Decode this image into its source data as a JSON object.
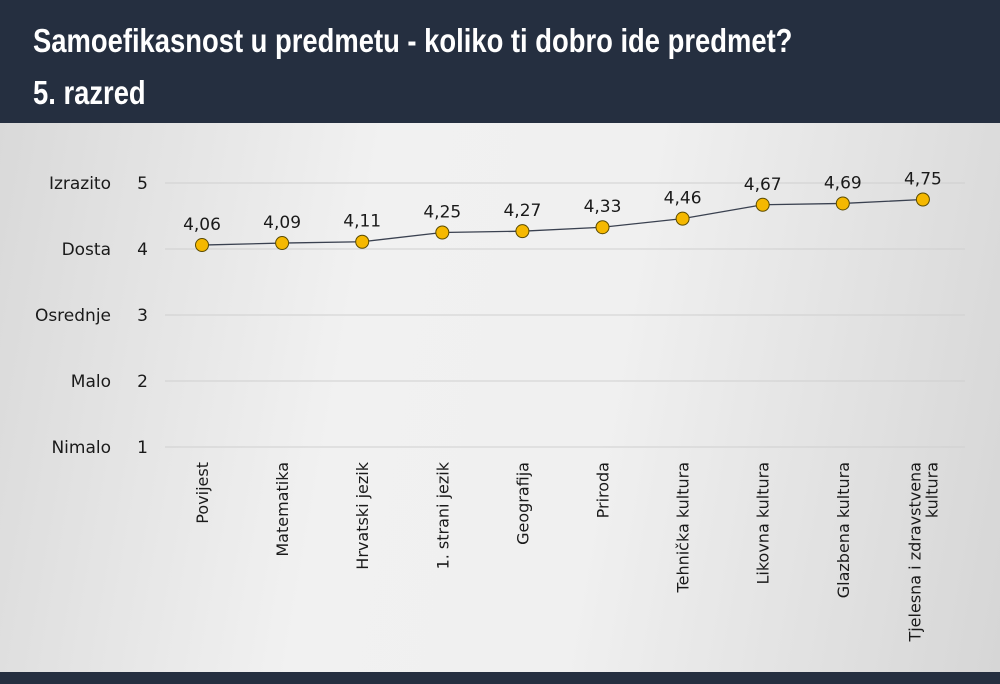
{
  "header": {
    "title_line1": "Samoefikasnost u predmetu - koliko ti dobro ide predmet?",
    "title_line2": "5. razred"
  },
  "chart_data": {
    "type": "line",
    "title": "Samoefikasnost u predmetu - koliko ti dobro ide predmet? 5. razred",
    "categories": [
      [
        "Povijest"
      ],
      [
        "Matematika"
      ],
      [
        "Hrvatski jezik"
      ],
      [
        "1. strani jezik"
      ],
      [
        "Geografija"
      ],
      [
        "Priroda"
      ],
      [
        "Tehnička kultura"
      ],
      [
        "Likovna kultura"
      ],
      [
        "Glazbena kultura"
      ],
      [
        "Tjelesna i zdravstvena",
        "kultura"
      ]
    ],
    "values": [
      4.06,
      4.09,
      4.11,
      4.25,
      4.27,
      4.33,
      4.46,
      4.67,
      4.69,
      4.75
    ],
    "data_labels": [
      "4,06",
      "4,09",
      "4,11",
      "4,25",
      "4,27",
      "4,33",
      "4,46",
      "4,67",
      "4,69",
      "4,75"
    ],
    "yticks": [
      5,
      4,
      3,
      2,
      1
    ],
    "ytick_text_labels": [
      "Izrazito",
      "Dosta",
      "Osrednje",
      "Malo",
      "Nimalo"
    ],
    "ylim": [
      1,
      5
    ],
    "grid": true,
    "colors": {
      "marker": "#f5b800",
      "marker_edge": "#5a4a00",
      "line": "#3a4150",
      "grid": "#cfcfcf"
    }
  }
}
